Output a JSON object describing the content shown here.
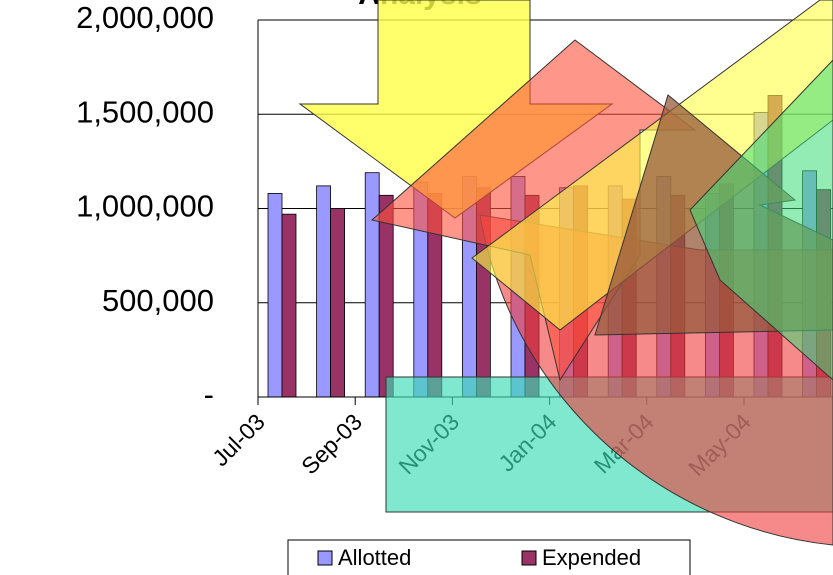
{
  "chart_data": {
    "type": "bar",
    "title": "Analysis",
    "categories": [
      "Jul-03",
      null,
      "Sep-03",
      null,
      "Nov-03",
      null,
      "Jan-04",
      null,
      "Mar-04",
      null,
      "May-04",
      null
    ],
    "series": [
      {
        "name": "Allotted",
        "color": "#9999ff",
        "values": [
          1080000,
          1120000,
          1190000,
          1140000,
          1170000,
          1170000,
          1110000,
          1120000,
          1170000,
          1080000,
          1510000,
          1200000
        ]
      },
      {
        "name": "Expended",
        "color": "#993366",
        "values": [
          970000,
          1000000,
          1070000,
          1080000,
          1110000,
          1070000,
          1120000,
          1050000,
          1070000,
          1130000,
          1600000,
          1100000
        ]
      }
    ],
    "ylim": [
      0,
      2000000
    ],
    "yticks": [
      {
        "value": 0,
        "label": "-"
      },
      {
        "value": 500000,
        "label": "500,000"
      },
      {
        "value": 1000000,
        "label": "1,000,000"
      },
      {
        "value": 1500000,
        "label": "1,500,000"
      },
      {
        "value": 2000000,
        "label": "2,000,000"
      }
    ],
    "grid": true,
    "legend": "bottom"
  }
}
